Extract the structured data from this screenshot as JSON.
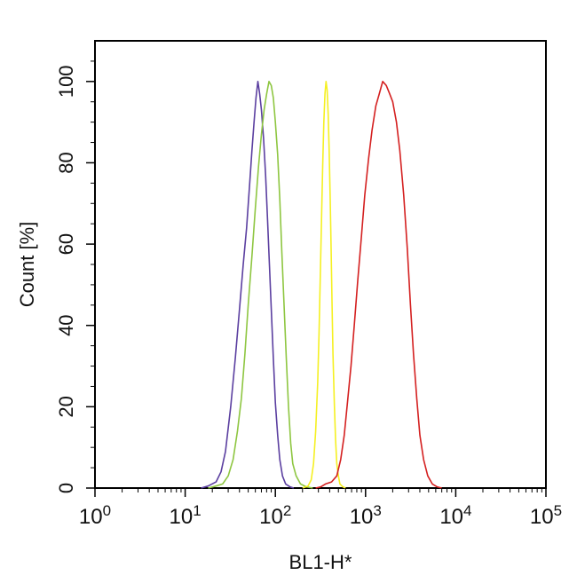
{
  "chart_data": {
    "type": "line",
    "title": "",
    "xlabel": "BL1-H*",
    "ylabel": "Count  [%]",
    "x_scale": "log",
    "xlim": [
      1,
      100000
    ],
    "ylim": [
      0,
      110
    ],
    "grid": false,
    "legend": "none",
    "x_tick_labels": [
      {
        "value": 1,
        "base": "10",
        "exp": "0"
      },
      {
        "value": 10,
        "base": "10",
        "exp": "1"
      },
      {
        "value": 100,
        "base": "10",
        "exp": "2"
      },
      {
        "value": 1000,
        "base": "10",
        "exp": "3"
      },
      {
        "value": 10000,
        "base": "10",
        "exp": "4"
      },
      {
        "value": 100000,
        "base": "10",
        "exp": "5"
      }
    ],
    "y_ticks": [
      0,
      20,
      40,
      60,
      80,
      100
    ],
    "series": [
      {
        "color": "#5b3fa0",
        "points": [
          [
            15,
            0
          ],
          [
            18,
            0.5
          ],
          [
            22,
            1.5
          ],
          [
            25,
            4
          ],
          [
            28,
            9
          ],
          [
            32,
            20
          ],
          [
            36,
            32
          ],
          [
            40,
            44
          ],
          [
            44,
            55
          ],
          [
            48,
            64
          ],
          [
            52,
            75
          ],
          [
            55,
            83
          ],
          [
            58,
            90
          ],
          [
            61,
            96
          ],
          [
            64,
            100
          ],
          [
            67,
            97
          ],
          [
            70,
            93
          ],
          [
            74,
            86
          ],
          [
            78,
            77
          ],
          [
            82,
            66
          ],
          [
            86,
            55
          ],
          [
            90,
            44
          ],
          [
            95,
            32
          ],
          [
            100,
            21
          ],
          [
            106,
            13
          ],
          [
            112,
            7
          ],
          [
            120,
            3
          ],
          [
            130,
            1
          ],
          [
            145,
            0.3
          ],
          [
            160,
            0
          ]
        ]
      },
      {
        "color": "#8ec641",
        "points": [
          [
            18,
            0
          ],
          [
            22,
            0.5
          ],
          [
            26,
            1
          ],
          [
            30,
            3
          ],
          [
            34,
            7
          ],
          [
            38,
            14
          ],
          [
            42,
            22
          ],
          [
            46,
            33
          ],
          [
            50,
            45
          ],
          [
            55,
            57
          ],
          [
            60,
            69
          ],
          [
            65,
            79
          ],
          [
            70,
            87
          ],
          [
            75,
            93
          ],
          [
            80,
            97
          ],
          [
            85,
            100
          ],
          [
            90,
            99
          ],
          [
            95,
            96
          ],
          [
            100,
            90
          ],
          [
            106,
            82
          ],
          [
            112,
            71
          ],
          [
            118,
            58
          ],
          [
            125,
            45
          ],
          [
            132,
            32
          ],
          [
            140,
            20
          ],
          [
            148,
            11
          ],
          [
            156,
            6
          ],
          [
            170,
            3
          ],
          [
            190,
            1
          ],
          [
            220,
            0.3
          ],
          [
            260,
            0
          ]
        ]
      },
      {
        "color": "#f5f022",
        "points": [
          [
            200,
            0
          ],
          [
            230,
            0.5
          ],
          [
            250,
            2
          ],
          [
            265,
            6
          ],
          [
            280,
            14
          ],
          [
            295,
            26
          ],
          [
            305,
            38
          ],
          [
            315,
            52
          ],
          [
            325,
            66
          ],
          [
            335,
            79
          ],
          [
            345,
            90
          ],
          [
            355,
            97
          ],
          [
            365,
            100
          ],
          [
            375,
            98
          ],
          [
            385,
            92
          ],
          [
            395,
            83
          ],
          [
            405,
            72
          ],
          [
            415,
            59
          ],
          [
            425,
            46
          ],
          [
            435,
            33
          ],
          [
            450,
            21
          ],
          [
            465,
            12
          ],
          [
            480,
            6
          ],
          [
            500,
            3
          ],
          [
            520,
            1
          ],
          [
            560,
            0.3
          ],
          [
            600,
            0
          ]
        ]
      },
      {
        "color": "#d42020",
        "points": [
          [
            280,
            0
          ],
          [
            320,
            0.3
          ],
          [
            360,
            1
          ],
          [
            420,
            1.5
          ],
          [
            480,
            3
          ],
          [
            530,
            7
          ],
          [
            580,
            13
          ],
          [
            630,
            21
          ],
          [
            690,
            30
          ],
          [
            750,
            40
          ],
          [
            820,
            51
          ],
          [
            900,
            62
          ],
          [
            980,
            72
          ],
          [
            1080,
            81
          ],
          [
            1180,
            88
          ],
          [
            1300,
            94
          ],
          [
            1420,
            97
          ],
          [
            1550,
            100
          ],
          [
            1700,
            99
          ],
          [
            1850,
            97
          ],
          [
            2000,
            95
          ],
          [
            2200,
            90
          ],
          [
            2400,
            83
          ],
          [
            2650,
            72
          ],
          [
            2900,
            59
          ],
          [
            3150,
            45
          ],
          [
            3400,
            33
          ],
          [
            3700,
            22
          ],
          [
            4000,
            13
          ],
          [
            4400,
            7
          ],
          [
            4900,
            3
          ],
          [
            5500,
            1
          ],
          [
            6200,
            0.3
          ],
          [
            7000,
            0
          ]
        ]
      }
    ]
  }
}
